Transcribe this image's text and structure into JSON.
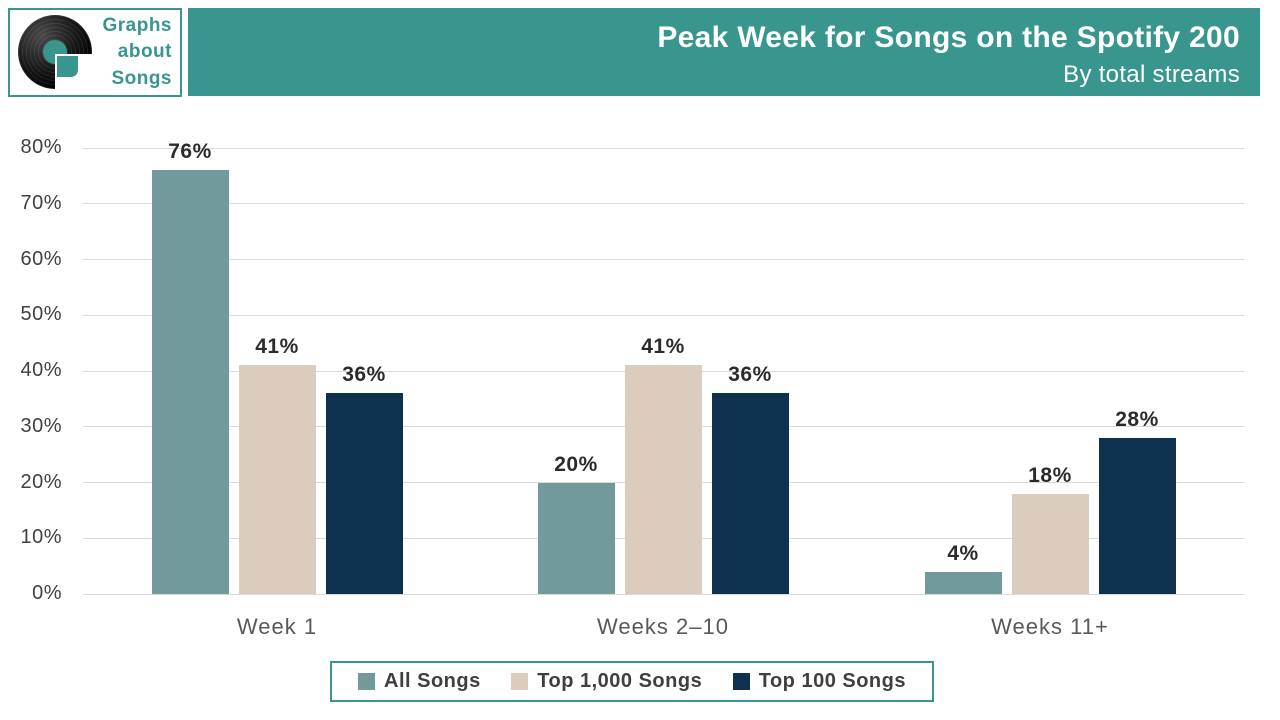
{
  "logo": {
    "line1": "Graphs",
    "line2": "about",
    "line3": "Songs"
  },
  "header": {
    "title": "Peak Week for Songs on the Spotify 200",
    "subtitle": "By total streams"
  },
  "chart_data": {
    "type": "bar",
    "title": "Peak Week for Songs on the Spotify 200",
    "subtitle": "By total streams",
    "categories": [
      "Week 1",
      "Weeks 2–10",
      "Weeks 11+"
    ],
    "series": [
      {
        "name": "All Songs",
        "color": "#72999c",
        "values": [
          76,
          20,
          4
        ]
      },
      {
        "name": "Top 1,000 Songs",
        "color": "#dbccbe",
        "values": [
          41,
          41,
          18
        ]
      },
      {
        "name": "Top 100 Songs",
        "color": "#0f3150",
        "values": [
          36,
          36,
          28
        ]
      }
    ],
    "value_suffix": "%",
    "ylim": [
      0,
      80
    ],
    "ytick_step": 10,
    "ytick_labels": [
      "0%",
      "10%",
      "20%",
      "30%",
      "40%",
      "50%",
      "60%",
      "70%",
      "80%"
    ],
    "data_labels": [
      "76%",
      "41%",
      "36%",
      "20%",
      "41%",
      "36%",
      "4%",
      "18%",
      "28%"
    ],
    "grid": true,
    "legend_position": "bottom",
    "xlabel": "",
    "ylabel": ""
  },
  "colors": {
    "accent_teal": "#38968f",
    "gridline": "#d9d9d9",
    "axis_text": "#404040",
    "category_text": "#595959",
    "data_label_text": "#2b2b2b"
  }
}
